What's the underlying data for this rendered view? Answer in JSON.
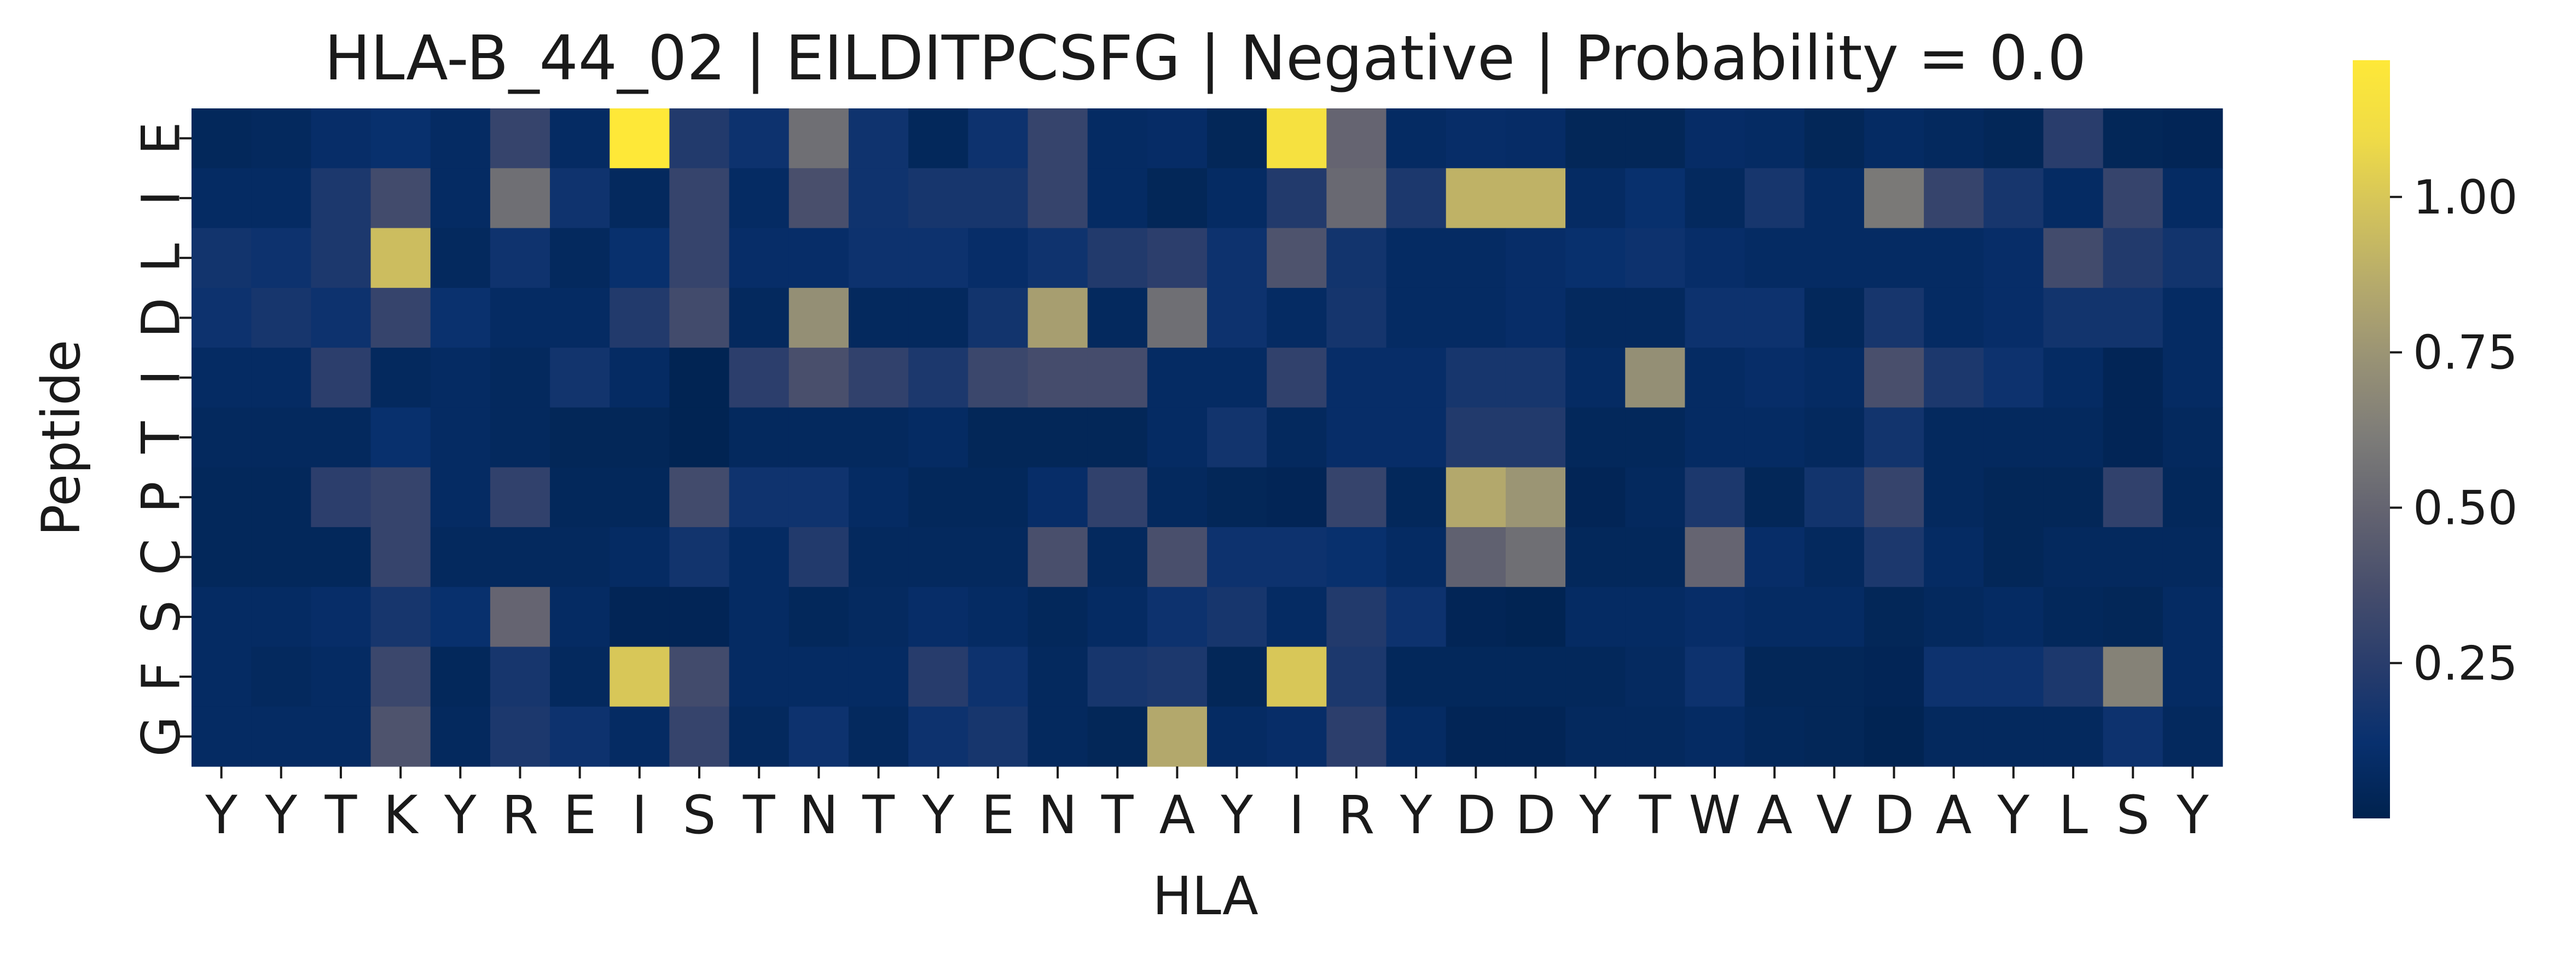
{
  "chart_data": {
    "type": "heatmap",
    "title": "HLA-B_44_02 | EILDITPCSFG | Negative | Probability = 0.0",
    "xlabel": "HLA",
    "ylabel": "Peptide",
    "x_categories": [
      "Y",
      "Y",
      "T",
      "K",
      "Y",
      "R",
      "E",
      "I",
      "S",
      "T",
      "N",
      "T",
      "Y",
      "E",
      "N",
      "T",
      "A",
      "Y",
      "I",
      "R",
      "Y",
      "D",
      "D",
      "Y",
      "T",
      "W",
      "A",
      "V",
      "D",
      "A",
      "Y",
      "L",
      "S",
      "Y"
    ],
    "y_categories": [
      "E",
      "I",
      "L",
      "D",
      "I",
      "T",
      "P",
      "C",
      "S",
      "F",
      "G"
    ],
    "colormap": "cividis",
    "vmin": 0.0,
    "vmax": 1.22,
    "colorbar_ticks": [
      0.25,
      0.5,
      0.75,
      1.0
    ],
    "colorbar_tick_labels": [
      "0.25",
      "0.50",
      "0.75",
      "1.00"
    ],
    "values": [
      [
        0.05,
        0.06,
        0.1,
        0.12,
        0.08,
        0.3,
        0.08,
        1.22,
        0.22,
        0.14,
        0.55,
        0.15,
        0.05,
        0.14,
        0.3,
        0.08,
        0.09,
        0.04,
        1.15,
        0.5,
        0.08,
        0.1,
        0.09,
        0.04,
        0.04,
        0.09,
        0.08,
        0.04,
        0.08,
        0.06,
        0.04,
        0.25,
        0.04,
        0.03
      ],
      [
        0.08,
        0.08,
        0.2,
        0.35,
        0.08,
        0.55,
        0.15,
        0.06,
        0.3,
        0.08,
        0.38,
        0.15,
        0.18,
        0.18,
        0.3,
        0.08,
        0.04,
        0.08,
        0.22,
        0.52,
        0.2,
        0.9,
        0.9,
        0.08,
        0.12,
        0.06,
        0.18,
        0.08,
        0.6,
        0.3,
        0.18,
        0.08,
        0.3,
        0.08
      ],
      [
        0.16,
        0.14,
        0.2,
        0.95,
        0.06,
        0.15,
        0.06,
        0.12,
        0.3,
        0.1,
        0.1,
        0.14,
        0.14,
        0.1,
        0.15,
        0.22,
        0.26,
        0.14,
        0.4,
        0.16,
        0.08,
        0.08,
        0.1,
        0.12,
        0.14,
        0.1,
        0.08,
        0.08,
        0.08,
        0.08,
        0.1,
        0.35,
        0.22,
        0.16
      ],
      [
        0.14,
        0.18,
        0.14,
        0.3,
        0.13,
        0.08,
        0.08,
        0.22,
        0.35,
        0.06,
        0.72,
        0.06,
        0.06,
        0.16,
        0.8,
        0.06,
        0.55,
        0.14,
        0.08,
        0.17,
        0.08,
        0.08,
        0.1,
        0.06,
        0.06,
        0.14,
        0.14,
        0.05,
        0.18,
        0.08,
        0.1,
        0.16,
        0.16,
        0.08
      ],
      [
        0.08,
        0.08,
        0.26,
        0.06,
        0.08,
        0.06,
        0.16,
        0.08,
        0.02,
        0.26,
        0.38,
        0.28,
        0.2,
        0.32,
        0.36,
        0.36,
        0.08,
        0.08,
        0.28,
        0.1,
        0.1,
        0.18,
        0.18,
        0.08,
        0.72,
        0.08,
        0.1,
        0.08,
        0.38,
        0.2,
        0.14,
        0.08,
        0.03,
        0.08
      ],
      [
        0.06,
        0.06,
        0.06,
        0.12,
        0.08,
        0.06,
        0.04,
        0.04,
        0.02,
        0.06,
        0.06,
        0.06,
        0.08,
        0.04,
        0.04,
        0.04,
        0.08,
        0.16,
        0.06,
        0.1,
        0.1,
        0.22,
        0.22,
        0.05,
        0.05,
        0.08,
        0.08,
        0.06,
        0.16,
        0.06,
        0.06,
        0.06,
        0.03,
        0.06
      ],
      [
        0.05,
        0.05,
        0.26,
        0.3,
        0.08,
        0.28,
        0.05,
        0.05,
        0.35,
        0.15,
        0.15,
        0.08,
        0.05,
        0.05,
        0.1,
        0.28,
        0.06,
        0.04,
        0.03,
        0.3,
        0.05,
        0.85,
        0.75,
        0.03,
        0.06,
        0.2,
        0.04,
        0.16,
        0.3,
        0.06,
        0.04,
        0.04,
        0.28,
        0.05
      ],
      [
        0.05,
        0.05,
        0.05,
        0.3,
        0.06,
        0.06,
        0.06,
        0.08,
        0.16,
        0.08,
        0.22,
        0.06,
        0.06,
        0.06,
        0.38,
        0.06,
        0.38,
        0.14,
        0.14,
        0.12,
        0.08,
        0.48,
        0.55,
        0.05,
        0.05,
        0.5,
        0.1,
        0.06,
        0.2,
        0.08,
        0.04,
        0.06,
        0.06,
        0.06
      ],
      [
        0.08,
        0.08,
        0.1,
        0.18,
        0.12,
        0.5,
        0.08,
        0.03,
        0.03,
        0.08,
        0.05,
        0.07,
        0.1,
        0.08,
        0.05,
        0.08,
        0.14,
        0.18,
        0.08,
        0.22,
        0.14,
        0.03,
        0.02,
        0.08,
        0.08,
        0.1,
        0.08,
        0.08,
        0.04,
        0.06,
        0.08,
        0.05,
        0.04,
        0.08
      ],
      [
        0.08,
        0.06,
        0.08,
        0.32,
        0.05,
        0.18,
        0.06,
        1.0,
        0.35,
        0.08,
        0.08,
        0.08,
        0.24,
        0.14,
        0.06,
        0.18,
        0.2,
        0.04,
        1.0,
        0.2,
        0.05,
        0.05,
        0.05,
        0.05,
        0.07,
        0.14,
        0.04,
        0.04,
        0.03,
        0.14,
        0.14,
        0.2,
        0.65,
        0.08
      ],
      [
        0.08,
        0.08,
        0.08,
        0.4,
        0.06,
        0.2,
        0.14,
        0.08,
        0.3,
        0.06,
        0.14,
        0.06,
        0.14,
        0.18,
        0.06,
        0.04,
        0.85,
        0.08,
        0.1,
        0.26,
        0.08,
        0.03,
        0.03,
        0.06,
        0.06,
        0.08,
        0.05,
        0.04,
        0.02,
        0.06,
        0.06,
        0.06,
        0.14,
        0.06
      ]
    ]
  }
}
